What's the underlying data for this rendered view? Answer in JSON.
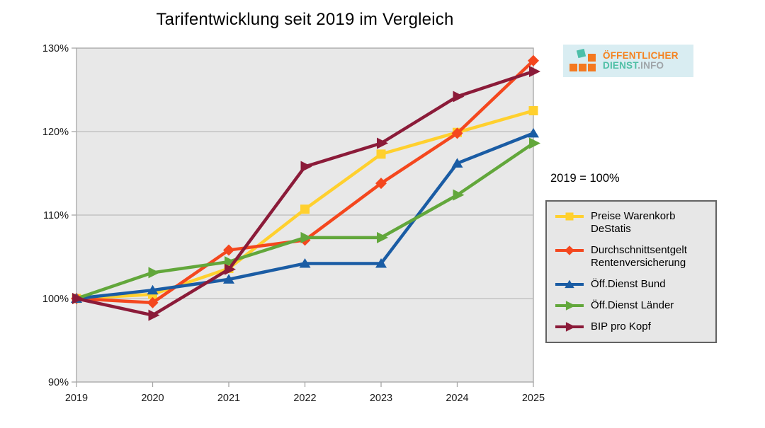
{
  "title": "Tarifentwicklung seit 2019 im Vergleich",
  "note": "2019 = 100%",
  "logo": {
    "line1": "ÖFFENTLICHER",
    "line2_teal": "DIENST",
    "line2_gray": ".INFO"
  },
  "chart_data": {
    "type": "line",
    "title": "Tarifentwicklung seit 2019 im Vergleich",
    "x": [
      2019,
      2020,
      2021,
      2022,
      2023,
      2024,
      2025
    ],
    "xlabel": "",
    "ylabel": "",
    "ylim": [
      90,
      130
    ],
    "yticks": [
      {
        "value": 90,
        "label": "90%"
      },
      {
        "value": 100,
        "label": "100%"
      },
      {
        "value": 110,
        "label": "110%"
      },
      {
        "value": 120,
        "label": "120%"
      },
      {
        "value": 130,
        "label": "130%"
      }
    ],
    "grid": true,
    "legend_position": "right",
    "baseline_note": "2019 = 100%",
    "plot_bg": "#E8E8E8",
    "grid_color": "#BBBBBB",
    "axis_color": "#A6A6A6",
    "tick_label_color": "#1A1A1A",
    "series": [
      {
        "name": "Preise Warenkorb DeStatis",
        "color": "#FFD02E",
        "marker": "square",
        "values": [
          100,
          100.5,
          103.6,
          110.7,
          117.3,
          119.9,
          122.5
        ]
      },
      {
        "name": "Durchschnittsentgelt Rentenversicherung",
        "color": "#F4471E",
        "marker": "diamond",
        "values": [
          100,
          99.5,
          105.8,
          107.0,
          113.8,
          119.8,
          128.5
        ]
      },
      {
        "name": "Öff.Dienst Bund",
        "color": "#1A5CA4",
        "marker": "triangle-up",
        "values": [
          100,
          101.0,
          102.3,
          104.2,
          104.2,
          116.2,
          119.8
        ]
      },
      {
        "name": "Öff.Dienst Länder",
        "color": "#62A73B",
        "marker": "triangle-right",
        "values": [
          100,
          103.1,
          104.4,
          107.3,
          107.3,
          112.4,
          118.6
        ]
      },
      {
        "name": "BIP pro Kopf",
        "color": "#8B1B39",
        "marker": "triangle-right",
        "values": [
          100,
          98.0,
          103.5,
          115.8,
          118.6,
          124.2,
          127.2
        ]
      }
    ]
  }
}
